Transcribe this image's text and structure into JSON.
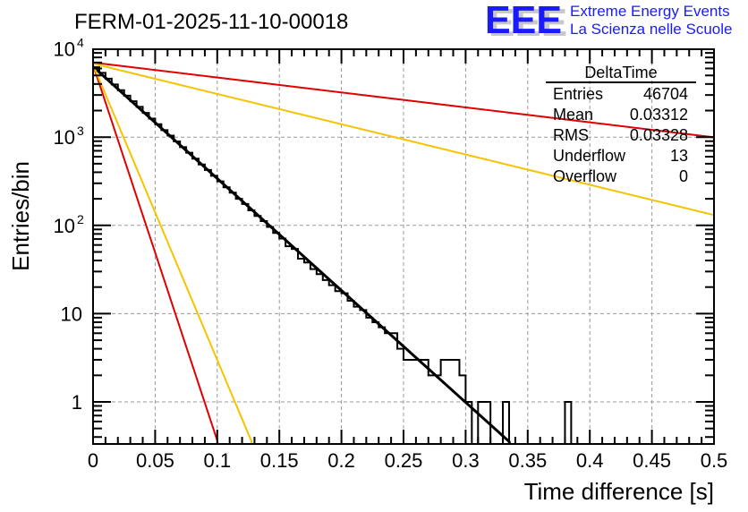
{
  "chart_data": {
    "type": "histogram",
    "title": "FERM-01-2025-11-10-00018",
    "xlabel": "Time difference [s]",
    "ylabel": "Entries/bin",
    "xlim": [
      0,
      0.5
    ],
    "ylim": [
      0.35,
      11000
    ],
    "yscale": "log",
    "grid": true,
    "x_ticks": [
      "0",
      "0.05",
      "0.1",
      "0.15",
      "0.2",
      "0.25",
      "0.3",
      "0.35",
      "0.4",
      "0.45",
      "0.5"
    ],
    "x_tick_values": [
      0,
      0.05,
      0.1,
      0.15,
      0.2,
      0.25,
      0.3,
      0.35,
      0.4,
      0.45,
      0.5
    ],
    "y_ticks": [
      {
        "value": 10000,
        "base": "10",
        "exp": "4"
      },
      {
        "value": 1000,
        "base": "10",
        "exp": "3"
      },
      {
        "value": 100,
        "base": "10",
        "exp": "2"
      },
      {
        "value": 10,
        "base": "10",
        "exp": ""
      },
      {
        "value": 1,
        "base": "1",
        "exp": ""
      }
    ],
    "bin_width": 0.005,
    "histogram": {
      "name": "DeltaTime",
      "color": "#000000",
      "bins_start": 0,
      "values": [
        6200,
        5350,
        4600,
        3950,
        3400,
        2950,
        2550,
        2200,
        1880,
        1620,
        1400,
        1200,
        1040,
        895,
        770,
        665,
        570,
        490,
        425,
        365,
        315,
        270,
        235,
        200,
        175,
        148,
        128,
        112,
        96,
        82,
        71,
        58,
        54,
        42,
        38,
        32,
        28,
        24,
        21,
        18,
        17,
        14,
        12,
        11,
        9,
        8,
        7,
        6,
        6,
        4,
        3,
        3,
        3,
        3,
        2,
        2,
        3,
        3,
        3,
        2,
        1,
        0,
        1,
        1,
        0,
        0,
        1,
        0,
        0,
        0,
        0,
        0,
        0,
        0,
        0,
        0,
        1,
        0,
        0,
        0,
        0,
        0,
        0,
        0,
        0,
        0,
        0,
        0,
        0,
        0,
        0,
        0,
        0,
        0,
        0,
        0,
        0,
        0,
        0,
        0
      ]
    },
    "fit_curves": [
      {
        "name": "fit-black",
        "color": "#000000",
        "A": 6300,
        "tau_inv": 29.2
      },
      {
        "name": "fit-red-slow",
        "color": "#e00000",
        "A": 7000,
        "tau_inv": 3.9
      },
      {
        "name": "fit-yellow-slow",
        "color": "#f5c400",
        "A": 6800,
        "tau_inv": 7.9
      },
      {
        "name": "fit-red-steep",
        "color": "#e00000",
        "A": 6600,
        "tau_inv": 98
      },
      {
        "name": "fit-yellow-steep",
        "color": "#f5c400",
        "A": 6600,
        "tau_inv": 77
      }
    ],
    "stats_box": {
      "title": "DeltaTime",
      "rows": [
        {
          "label": "Entries",
          "value": "46704"
        },
        {
          "label": "Mean",
          "value": "0.03312"
        },
        {
          "label": "RMS",
          "value": "0.03328"
        },
        {
          "label": "Underflow",
          "value": "13"
        },
        {
          "label": "Overflow",
          "value": "0"
        }
      ]
    }
  },
  "logo": {
    "letters": "EEE",
    "line1": "Extreme Energy Events",
    "line2": "La Scienza nelle Scuole",
    "color": "#1a1aff"
  }
}
